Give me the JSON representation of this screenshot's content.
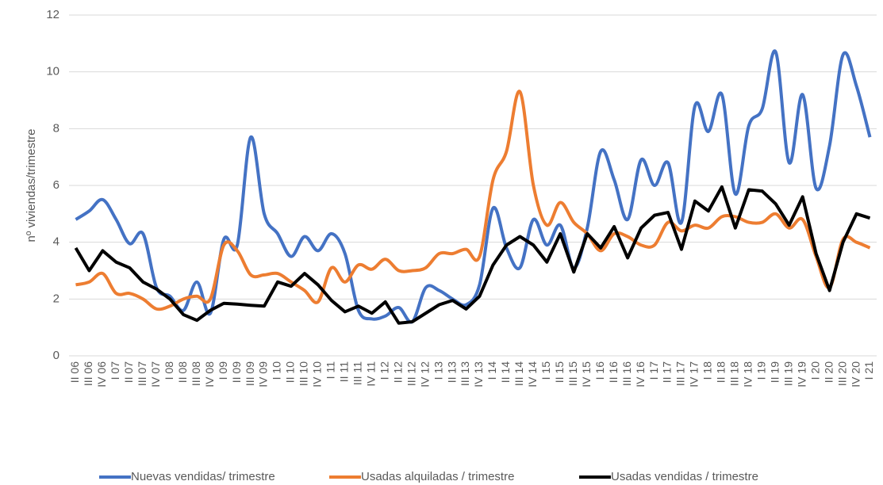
{
  "chart_data": {
    "type": "line",
    "y_label": "nº viviendas/trimestre",
    "categories": [
      "II 06",
      "III 06",
      "IV 06",
      "I 07",
      "II 07",
      "III 07",
      "IV 07",
      "I 08",
      "II 08",
      "III 08",
      "IV 08",
      "I 09",
      "II 09",
      "III 09",
      "IV 09",
      "I 10",
      "II 10",
      "III 10",
      "IV 10",
      "I 11",
      "II 11",
      "III 11",
      "IV 11",
      "I 12",
      "II 12",
      "III 12",
      "IV 12",
      "I 13",
      "II 13",
      "III 13",
      "IV 13",
      "I 14",
      "II 14",
      "III 14",
      "IV 14",
      "I 15",
      "II 15",
      "III 15",
      "IV 15",
      "I 16",
      "II 16",
      "III 16",
      "IV 16",
      "I 17",
      "II 17",
      "III 17",
      "IV 17",
      "I 18",
      "II 18",
      "III 18",
      "IV 18",
      "I 19",
      "II 19",
      "III 19",
      "IV 19",
      "I 20",
      "II 20",
      "III 20",
      "IV 20",
      "I 21"
    ],
    "series": [
      {
        "name": "Nuevas vendidas/ trimestre",
        "color": "#4472c4",
        "smooth": true,
        "values": [
          4.8,
          5.1,
          5.5,
          4.8,
          3.95,
          4.3,
          2.4,
          2.1,
          1.6,
          2.6,
          1.5,
          4.1,
          3.9,
          7.7,
          5.0,
          4.3,
          3.5,
          4.2,
          3.7,
          4.3,
          3.6,
          1.6,
          1.3,
          1.4,
          1.7,
          1.2,
          2.4,
          2.3,
          2.0,
          1.8,
          2.5,
          5.2,
          3.8,
          3.1,
          4.8,
          3.9,
          4.6,
          3.1,
          4.5,
          7.2,
          6.2,
          4.8,
          6.9,
          6.0,
          6.8,
          4.7,
          8.8,
          7.9,
          9.2,
          5.7,
          8.1,
          8.7,
          10.7,
          6.8,
          9.2,
          5.9,
          7.4,
          10.6,
          9.5,
          7.7
        ]
      },
      {
        "name": "Usadas alquiladas / trimestre",
        "color": "#ed7d31",
        "smooth": true,
        "values": [
          2.5,
          2.6,
          2.9,
          2.2,
          2.2,
          2.0,
          1.65,
          1.75,
          2.0,
          2.1,
          2.0,
          3.9,
          3.7,
          2.85,
          2.85,
          2.9,
          2.6,
          2.3,
          1.9,
          3.1,
          2.6,
          3.2,
          3.05,
          3.4,
          3.0,
          3.0,
          3.1,
          3.6,
          3.6,
          3.75,
          3.5,
          6.2,
          7.2,
          9.3,
          6.0,
          4.6,
          5.4,
          4.7,
          4.3,
          3.7,
          4.3,
          4.2,
          3.9,
          3.9,
          4.7,
          4.4,
          4.6,
          4.5,
          4.9,
          4.9,
          4.7,
          4.7,
          5.0,
          4.5,
          4.8,
          3.5,
          2.4,
          4.1,
          4.0,
          3.8
        ]
      },
      {
        "name": "Usadas vendidas / trimestre",
        "color": "#000000",
        "smooth": false,
        "values": [
          3.8,
          3.0,
          3.7,
          3.3,
          3.1,
          2.6,
          2.35,
          2.0,
          1.45,
          1.25,
          1.6,
          1.85,
          1.82,
          1.78,
          1.75,
          2.6,
          2.45,
          2.9,
          2.5,
          1.95,
          1.55,
          1.75,
          1.5,
          1.9,
          1.15,
          1.2,
          1.5,
          1.8,
          1.95,
          1.65,
          2.1,
          3.2,
          3.9,
          4.2,
          3.9,
          3.3,
          4.3,
          2.95,
          4.3,
          3.8,
          4.55,
          3.45,
          4.5,
          4.95,
          5.05,
          3.75,
          5.45,
          5.1,
          5.95,
          4.5,
          5.85,
          5.8,
          5.35,
          4.6,
          5.6,
          3.6,
          2.3,
          4.0,
          5.0,
          4.85
        ]
      }
    ],
    "ylim": [
      0,
      12
    ],
    "yticks": [
      0,
      2,
      4,
      6,
      8,
      10,
      12
    ],
    "grid": true,
    "legend": "bottom"
  }
}
